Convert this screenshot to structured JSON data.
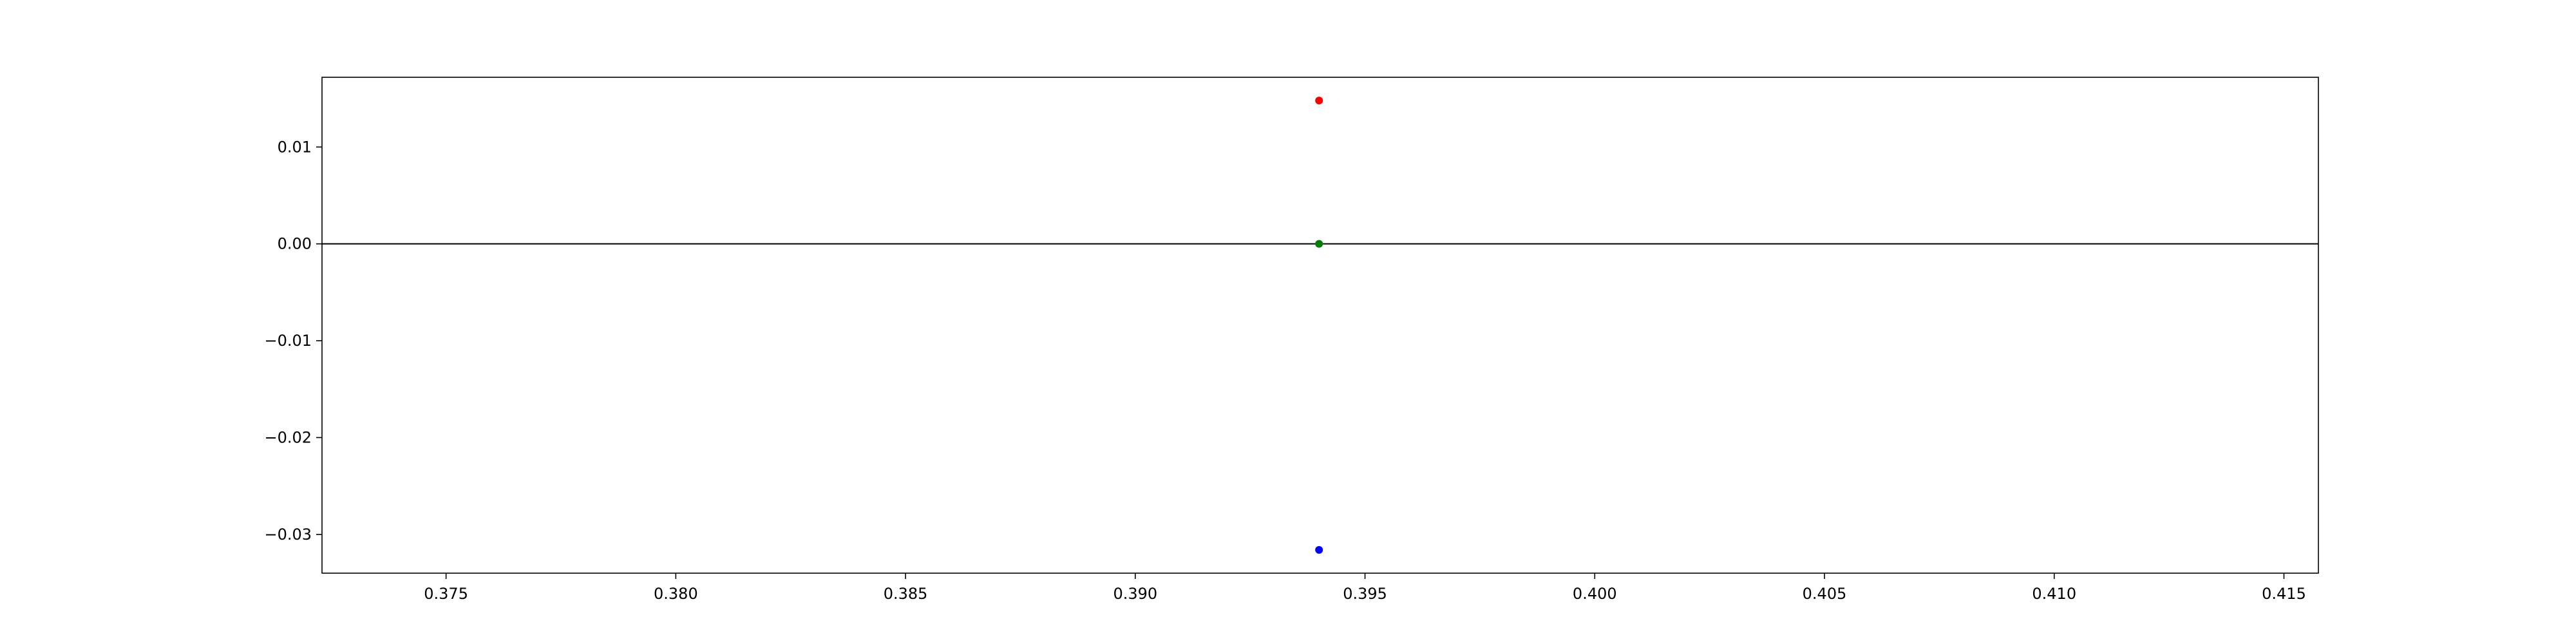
{
  "chart_data": {
    "type": "scatter",
    "title": "",
    "xlabel": "",
    "ylabel": "",
    "xlim": [
      0.3723,
      0.41575
    ],
    "ylim": [
      -0.034,
      0.0172
    ],
    "grid": false,
    "legend": "none",
    "x_ticks": [
      {
        "value": 0.375,
        "label": "0.375"
      },
      {
        "value": 0.38,
        "label": "0.380"
      },
      {
        "value": 0.385,
        "label": "0.385"
      },
      {
        "value": 0.39,
        "label": "0.390"
      },
      {
        "value": 0.395,
        "label": "0.395"
      },
      {
        "value": 0.4,
        "label": "0.400"
      },
      {
        "value": 0.405,
        "label": "0.405"
      },
      {
        "value": 0.41,
        "label": "0.410"
      },
      {
        "value": 0.415,
        "label": "0.415"
      }
    ],
    "y_ticks": [
      {
        "value": 0.01,
        "label": "0.01"
      },
      {
        "value": 0.0,
        "label": "0.00"
      },
      {
        "value": -0.01,
        "label": "−0.01"
      },
      {
        "value": -0.02,
        "label": "−0.02"
      },
      {
        "value": -0.03,
        "label": "−0.03"
      }
    ],
    "hline": {
      "y": 0,
      "color": "#000000"
    },
    "points": [
      {
        "x": 0.394,
        "y": 0.0148,
        "color": "#ff0000"
      },
      {
        "x": 0.394,
        "y": 0.0,
        "color": "#008000"
      },
      {
        "x": 0.394,
        "y": -0.0316,
        "color": "#0000ff"
      }
    ]
  }
}
